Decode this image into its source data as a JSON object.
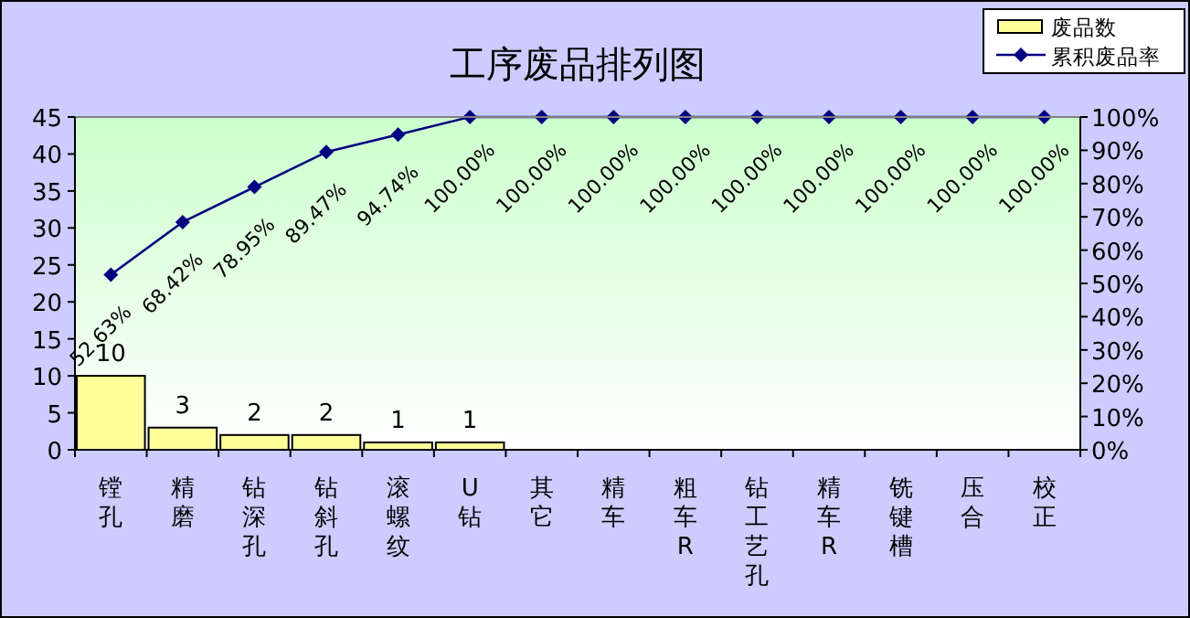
{
  "chart_data": {
    "type": "bar",
    "title": "工序废品排列图",
    "categories": [
      "镗孔",
      "精磨",
      "钻深孔",
      "钻斜孔",
      "滚螺纹",
      "U钻",
      "其它",
      "精车",
      "粗车R",
      "钻工艺孔",
      "精车R",
      "铣键槽",
      "压合",
      "校正"
    ],
    "series": [
      {
        "name": "废品数",
        "color": "#ffff99",
        "values": [
          10,
          3,
          2,
          2,
          1,
          1,
          0,
          0,
          0,
          0,
          0,
          0,
          0,
          0
        ],
        "value_labels": [
          "10",
          "3",
          "2",
          "2",
          "1",
          "1",
          null,
          null,
          null,
          null,
          null,
          null,
          null,
          null
        ]
      },
      {
        "name": "累积废品率",
        "type": "line",
        "axis": "y2",
        "color": "#000080",
        "values": [
          52.63,
          68.42,
          78.95,
          89.47,
          94.74,
          100,
          100,
          100,
          100,
          100,
          100,
          100,
          100,
          100
        ],
        "value_labels": [
          "52.63%",
          "68.42%",
          "78.95%",
          "89.47%",
          "94.74%",
          "100.00%",
          "100.00%",
          "100.00%",
          "100.00%",
          "100.00%",
          "100.00%",
          "100.00%",
          "100.00%",
          "100.00%"
        ]
      }
    ],
    "ylim": [
      0,
      45
    ],
    "yticks": [
      0,
      5,
      10,
      15,
      20,
      25,
      30,
      35,
      40,
      45
    ],
    "y2lim": [
      0,
      100
    ],
    "y2ticks": [
      {
        "value": 0,
        "label": "0%"
      },
      {
        "value": 10,
        "label": "10%"
      },
      {
        "value": 20,
        "label": "20%"
      },
      {
        "value": 30,
        "label": "30%"
      },
      {
        "value": 40,
        "label": "40%"
      },
      {
        "value": 50,
        "label": "50%"
      },
      {
        "value": 60,
        "label": "60%"
      },
      {
        "value": 70,
        "label": "70%"
      },
      {
        "value": 80,
        "label": "80%"
      },
      {
        "value": 90,
        "label": "90%"
      },
      {
        "value": 100,
        "label": "100%"
      }
    ],
    "marker": "diamond",
    "legend": "top right"
  }
}
